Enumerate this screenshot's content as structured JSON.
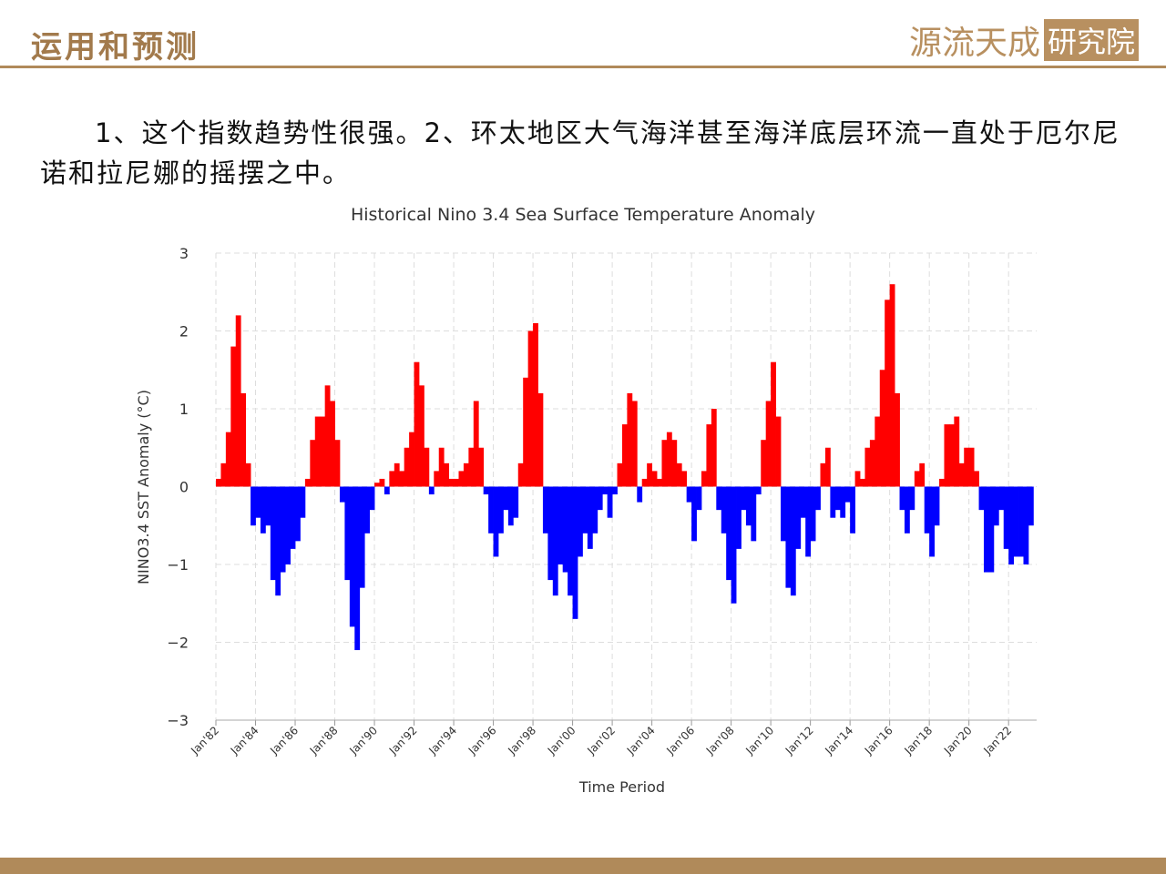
{
  "header": {
    "title": "运用和预测",
    "logo": "源流天成",
    "logo_box": "研究院"
  },
  "body_text": "1、这个指数趋势性很强。2、环太地区大气海洋甚至海洋底层环流一直处于厄尔尼诺和拉尼娜的摇摆之中。",
  "chart_data": {
    "type": "bar",
    "title": "Historical Nino 3.4 Sea Surface Temperature Anomaly",
    "x_label": "Time Period",
    "y_label": "NINO3.4 SST Anomaly (°C)",
    "positive_color": "#ff0000",
    "negative_color": "#0000ff",
    "grid": true,
    "xlim": [
      "1982-01",
      "2023-06"
    ],
    "xticks": [
      {
        "value": "1982-01",
        "label": "Jan'82"
      },
      {
        "value": "1984-01",
        "label": "Jan'84"
      },
      {
        "value": "1986-01",
        "label": "Jan'86"
      },
      {
        "value": "1988-01",
        "label": "Jan'88"
      },
      {
        "value": "1990-01",
        "label": "Jan'90"
      },
      {
        "value": "1992-01",
        "label": "Jan'92"
      },
      {
        "value": "1994-01",
        "label": "Jan'94"
      },
      {
        "value": "1996-01",
        "label": "Jan'96"
      },
      {
        "value": "1998-01",
        "label": "Jan'98"
      },
      {
        "value": "2000-01",
        "label": "Jan'00"
      },
      {
        "value": "2002-01",
        "label": "Jan'02"
      },
      {
        "value": "2004-01",
        "label": "Jan'04"
      },
      {
        "value": "2006-01",
        "label": "Jan'06"
      },
      {
        "value": "2008-01",
        "label": "Jan'08"
      },
      {
        "value": "2010-01",
        "label": "Jan'10"
      },
      {
        "value": "2012-01",
        "label": "Jan'12"
      },
      {
        "value": "2014-01",
        "label": "Jan'14"
      },
      {
        "value": "2016-01",
        "label": "Jan'16"
      },
      {
        "value": "2018-01",
        "label": "Jan'18"
      },
      {
        "value": "2020-01",
        "label": "Jan'20"
      },
      {
        "value": "2022-01",
        "label": "Jan'22"
      }
    ],
    "ylim": [
      -3,
      3
    ],
    "yticks": [
      {
        "value": -3,
        "label": "−3"
      },
      {
        "value": -2,
        "label": "−2"
      },
      {
        "value": -1,
        "label": "−1"
      },
      0,
      1,
      2,
      3
    ],
    "x": [
      "1982-01",
      "1982-04",
      "1982-07",
      "1982-10",
      "1983-01",
      "1983-04",
      "1983-07",
      "1983-10",
      "1984-01",
      "1984-04",
      "1984-07",
      "1984-10",
      "1985-01",
      "1985-04",
      "1985-07",
      "1985-10",
      "1986-01",
      "1986-04",
      "1986-07",
      "1986-10",
      "1987-01",
      "1987-04",
      "1987-07",
      "1987-10",
      "1988-01",
      "1988-04",
      "1988-07",
      "1988-10",
      "1989-01",
      "1989-04",
      "1989-07",
      "1989-10",
      "1990-01",
      "1990-04",
      "1990-07",
      "1990-10",
      "1991-01",
      "1991-04",
      "1991-07",
      "1991-10",
      "1992-01",
      "1992-04",
      "1992-07",
      "1992-10",
      "1993-01",
      "1993-04",
      "1993-07",
      "1993-10",
      "1994-01",
      "1994-04",
      "1994-07",
      "1994-10",
      "1995-01",
      "1995-04",
      "1995-07",
      "1995-10",
      "1996-01",
      "1996-04",
      "1996-07",
      "1996-10",
      "1997-01",
      "1997-04",
      "1997-07",
      "1997-10",
      "1998-01",
      "1998-04",
      "1998-07",
      "1998-10",
      "1999-01",
      "1999-04",
      "1999-07",
      "1999-10",
      "2000-01",
      "2000-04",
      "2000-07",
      "2000-10",
      "2001-01",
      "2001-04",
      "2001-07",
      "2001-10",
      "2002-01",
      "2002-04",
      "2002-07",
      "2002-10",
      "2003-01",
      "2003-04",
      "2003-07",
      "2003-10",
      "2004-01",
      "2004-04",
      "2004-07",
      "2004-10",
      "2005-01",
      "2005-04",
      "2005-07",
      "2005-10",
      "2006-01",
      "2006-04",
      "2006-07",
      "2006-10",
      "2007-01",
      "2007-04",
      "2007-07",
      "2007-10",
      "2008-01",
      "2008-04",
      "2008-07",
      "2008-10",
      "2009-01",
      "2009-04",
      "2009-07",
      "2009-10",
      "2010-01",
      "2010-04",
      "2010-07",
      "2010-10",
      "2011-01",
      "2011-04",
      "2011-07",
      "2011-10",
      "2012-01",
      "2012-04",
      "2012-07",
      "2012-10",
      "2013-01",
      "2013-04",
      "2013-07",
      "2013-10",
      "2014-01",
      "2014-04",
      "2014-07",
      "2014-10",
      "2015-01",
      "2015-04",
      "2015-07",
      "2015-10",
      "2016-01",
      "2016-04",
      "2016-07",
      "2016-10",
      "2017-01",
      "2017-04",
      "2017-07",
      "2017-10",
      "2018-01",
      "2018-04",
      "2018-07",
      "2018-10",
      "2019-01",
      "2019-04",
      "2019-07",
      "2019-10",
      "2020-01",
      "2020-04",
      "2020-07",
      "2020-10",
      "2021-01",
      "2021-04",
      "2021-07",
      "2021-10",
      "2022-01",
      "2022-04",
      "2022-07",
      "2022-10",
      "2023-01"
    ],
    "values": [
      0.1,
      0.3,
      0.7,
      1.8,
      2.2,
      1.2,
      0.3,
      -0.5,
      -0.4,
      -0.6,
      -0.5,
      -1.2,
      -1.4,
      -1.1,
      -1.0,
      -0.8,
      -0.7,
      -0.4,
      0.1,
      0.6,
      0.9,
      0.9,
      1.3,
      1.1,
      0.6,
      -0.2,
      -1.2,
      -1.8,
      -2.1,
      -1.3,
      -0.6,
      -0.3,
      0.05,
      0.1,
      -0.1,
      0.2,
      0.3,
      0.2,
      0.5,
      0.7,
      1.6,
      1.3,
      0.5,
      -0.1,
      0.2,
      0.5,
      0.3,
      0.1,
      0.1,
      0.2,
      0.3,
      0.5,
      1.1,
      0.5,
      -0.1,
      -0.6,
      -0.9,
      -0.6,
      -0.3,
      -0.5,
      -0.4,
      0.3,
      1.4,
      2.0,
      2.1,
      1.2,
      -0.6,
      -1.2,
      -1.4,
      -1.0,
      -1.1,
      -1.4,
      -1.7,
      -0.9,
      -0.6,
      -0.8,
      -0.6,
      -0.3,
      -0.1,
      -0.4,
      -0.1,
      0.3,
      0.8,
      1.2,
      1.1,
      -0.2,
      0.1,
      0.3,
      0.2,
      0.1,
      0.6,
      0.7,
      0.6,
      0.3,
      0.2,
      -0.2,
      -0.7,
      -0.3,
      0.2,
      0.8,
      1.0,
      -0.3,
      -0.6,
      -1.2,
      -1.5,
      -0.8,
      -0.3,
      -0.5,
      -0.7,
      -0.1,
      0.6,
      1.1,
      1.6,
      0.9,
      -0.7,
      -1.3,
      -1.4,
      -0.8,
      -0.4,
      -0.9,
      -0.7,
      -0.3,
      0.3,
      0.5,
      -0.4,
      -0.3,
      -0.4,
      -0.2,
      -0.6,
      0.2,
      0.1,
      0.5,
      0.6,
      0.9,
      1.5,
      2.4,
      2.6,
      1.2,
      -0.3,
      -0.6,
      -0.3,
      0.2,
      0.3,
      -0.6,
      -0.9,
      -0.5,
      0.1,
      0.8,
      0.8,
      0.9,
      0.3,
      0.5,
      0.5,
      0.2,
      -0.3,
      -1.1,
      -1.1,
      -0.5,
      -0.3,
      -0.8,
      -1.0,
      -0.9,
      -0.9,
      -1.0,
      -0.5
    ]
  }
}
